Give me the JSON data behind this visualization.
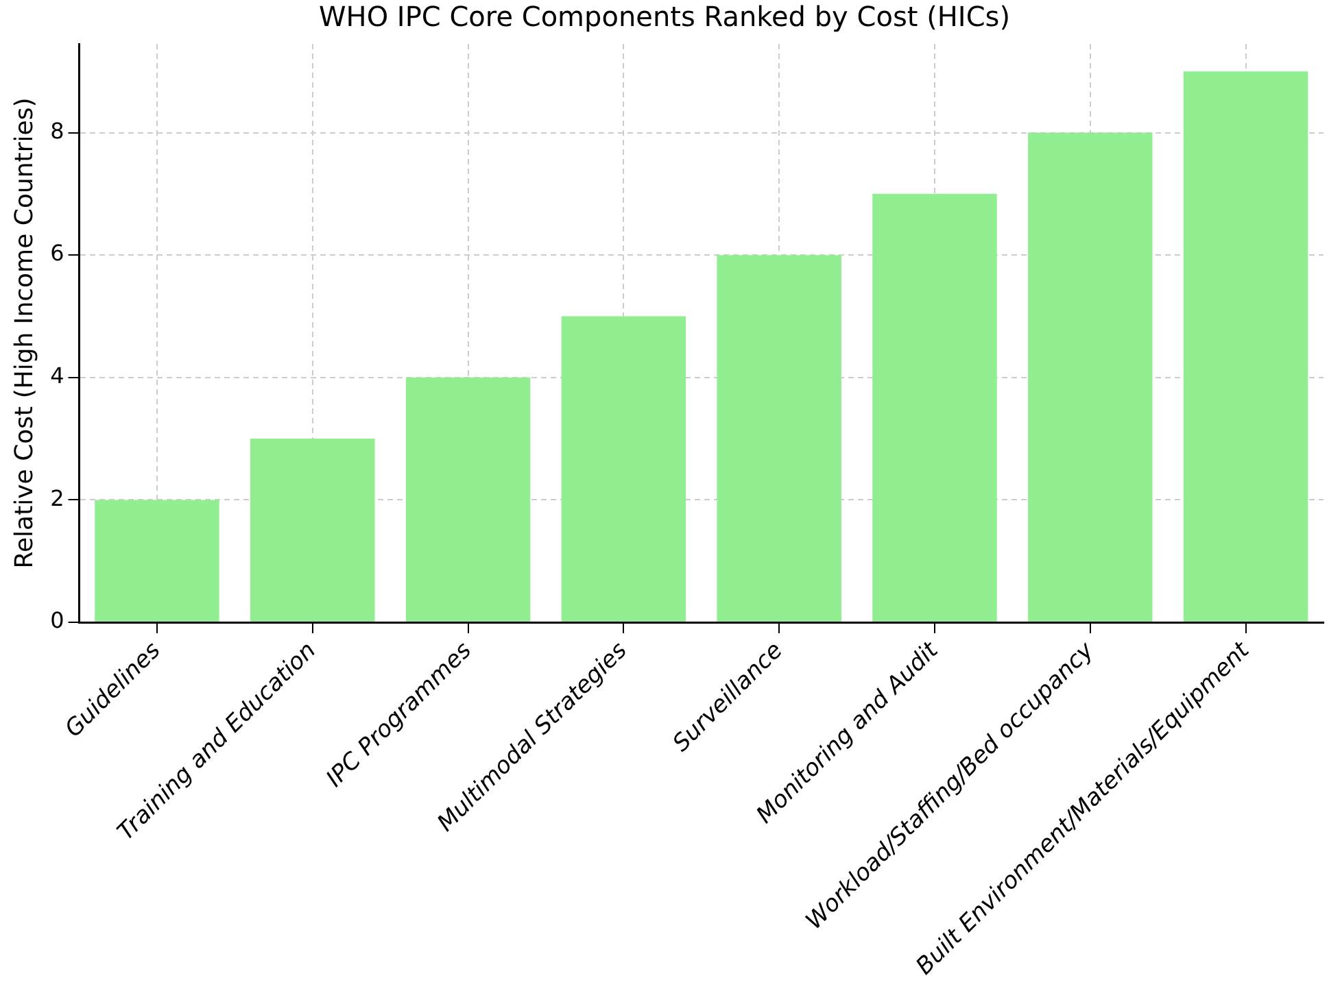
{
  "chart_data": {
    "type": "bar",
    "title": "WHO IPC Core Components Ranked by Cost (HICs)",
    "ylabel": "Relative Cost (High Income Countries)",
    "categories": [
      "Guidelines",
      "Training and Education",
      "IPC Programmes",
      "Multimodal Strategies",
      "Surveillance",
      "Monitoring and Audit",
      "Workload/Staffing/Bed occupancy",
      "Built Environment/Materials/Equipment"
    ],
    "values": [
      2,
      3,
      4,
      5,
      6,
      7,
      8,
      9
    ],
    "color": "#90ee90",
    "ylim": [
      0,
      9.45
    ],
    "yticks": [
      0,
      2,
      4,
      6,
      8
    ],
    "grid": true
  }
}
